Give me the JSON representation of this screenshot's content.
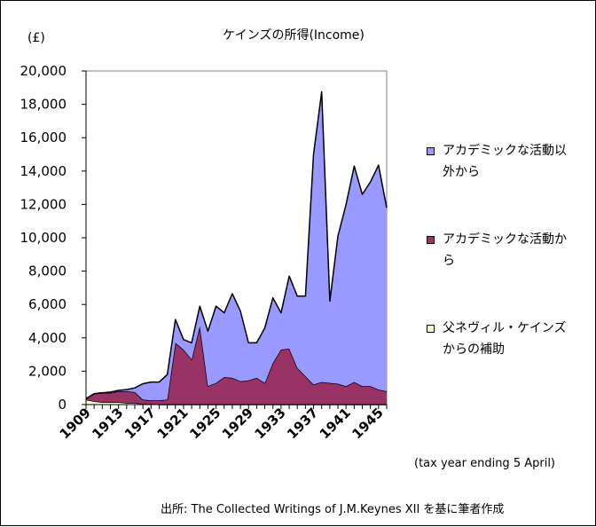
{
  "chart_data": {
    "type": "area",
    "stacked": true,
    "title": "ケインズの所得(Income)",
    "ylabel": "(£)",
    "note": "(tax year ending 5 April)",
    "source": "出所: The Collected Writings of J.M.Keynes XII を基に筆者作成",
    "x": [
      1909,
      1910,
      1911,
      1912,
      1913,
      1914,
      1915,
      1916,
      1917,
      1918,
      1919,
      1920,
      1921,
      1922,
      1923,
      1924,
      1925,
      1926,
      1927,
      1928,
      1929,
      1930,
      1931,
      1932,
      1933,
      1934,
      1935,
      1936,
      1937,
      1938,
      1939,
      1940,
      1941,
      1942,
      1943,
      1944,
      1945,
      1946
    ],
    "x_tick_labels": [
      "1909",
      "1913",
      "1917",
      "1921",
      "1925",
      "1929",
      "1933",
      "1937",
      "1941",
      "1945"
    ],
    "ylim": [
      0,
      20000
    ],
    "y_tick_labels": [
      "0",
      "2,000",
      "4,000",
      "6,000",
      "8,000",
      "10,000",
      "12,000",
      "14,000",
      "16,000",
      "18,000",
      "20,000"
    ],
    "grid": false,
    "legend_position": "right",
    "series": [
      {
        "name": "父ネヴィル・ケインズからの補助",
        "color": "#ffffcc",
        "values": [
          300,
          200,
          150,
          150,
          150,
          100,
          100,
          50,
          50,
          0,
          0,
          0,
          0,
          0,
          0,
          0,
          0,
          0,
          0,
          0,
          0,
          0,
          0,
          0,
          0,
          0,
          0,
          0,
          0,
          0,
          0,
          0,
          0,
          0,
          0,
          0,
          0,
          0
        ]
      },
      {
        "name": "アカデミックな活動から",
        "color": "#993366",
        "values": [
          50,
          450,
          550,
          550,
          650,
          700,
          650,
          250,
          200,
          250,
          300,
          3700,
          3300,
          2700,
          4700,
          1100,
          1300,
          1650,
          1600,
          1400,
          1450,
          1600,
          1300,
          2500,
          3300,
          3350,
          2200,
          1700,
          1200,
          1350,
          1300,
          1250,
          1100,
          1350,
          1100,
          1100,
          900,
          800
        ]
      },
      {
        "name": "アカデミックな活動以外から",
        "color": "#9999ff",
        "values": [
          0,
          0,
          0,
          50,
          50,
          100,
          250,
          950,
          1100,
          1100,
          1500,
          1400,
          600,
          1000,
          1200,
          3300,
          4600,
          3850,
          5050,
          4200,
          2250,
          2100,
          3300,
          3900,
          2200,
          4350,
          4300,
          4800,
          13800,
          17400,
          4900,
          8850,
          10900,
          12950,
          11500,
          12250,
          13450,
          11000
        ]
      }
    ]
  }
}
